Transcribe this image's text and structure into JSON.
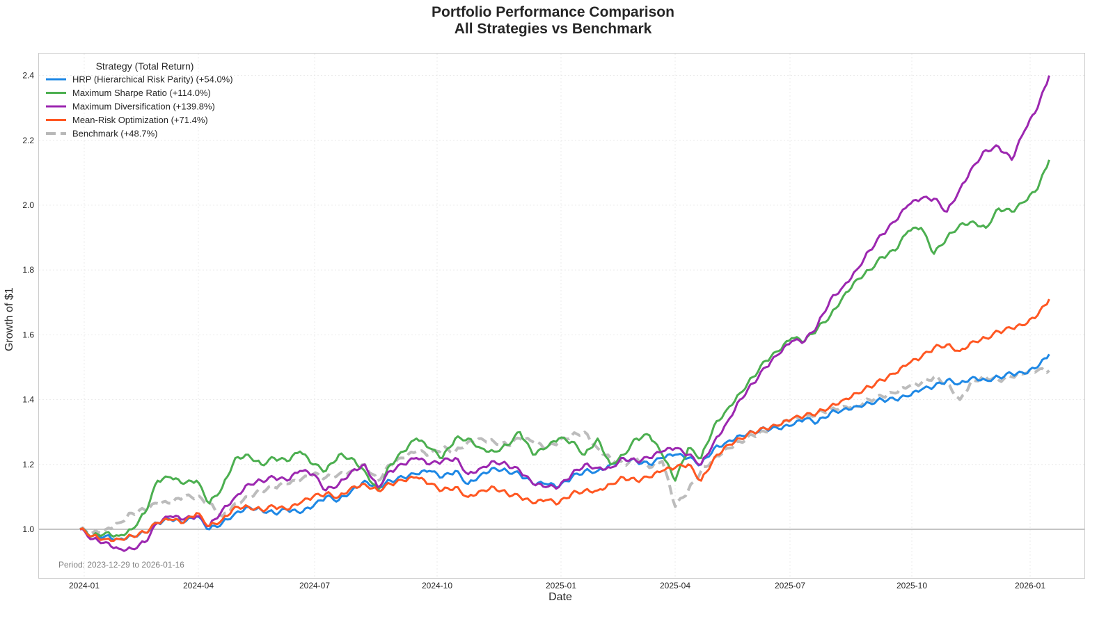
{
  "chart_data": {
    "type": "line",
    "title": "Portfolio Performance Comparison",
    "subtitle": "All Strategies vs Benchmark",
    "xlabel": "Date",
    "ylabel": "Growth of $1",
    "ylim": [
      0.85,
      2.47
    ],
    "xlim_dates": [
      "2023-12-17",
      "2026-02-28"
    ],
    "grid": true,
    "legend_position": "upper left",
    "legend_title": "Strategy (Total Return)",
    "yticks": [
      "1.0",
      "1.2",
      "1.4",
      "1.6",
      "1.8",
      "2.0",
      "2.2",
      "2.4"
    ],
    "xticks": [
      "2024-01",
      "2024-04",
      "2024-07",
      "2024-10",
      "2025-01",
      "2025-04",
      "2025-07",
      "2025-10",
      "2026-01"
    ],
    "reference_line": {
      "y": 1.0,
      "color": "#b0b0b0"
    },
    "annotation": "Period: 2023-12-29 to 2026-01-16",
    "x_unit": "days since 2023-12-29",
    "x": [
      0,
      10,
      20,
      30,
      40,
      50,
      60,
      70,
      80,
      90,
      100,
      110,
      120,
      130,
      140,
      150,
      160,
      170,
      180,
      190,
      200,
      210,
      220,
      230,
      240,
      250,
      260,
      270,
      280,
      290,
      300,
      310,
      320,
      330,
      340,
      350,
      360,
      370,
      380,
      390,
      400,
      410,
      420,
      430,
      440,
      450,
      460,
      470,
      480,
      490,
      500,
      510,
      520,
      530,
      540,
      550,
      560,
      570,
      580,
      590,
      600,
      610,
      620,
      630,
      640,
      650,
      660,
      670,
      680,
      690,
      700,
      710,
      720,
      730,
      740,
      749
    ],
    "series": [
      {
        "name": "HRP (Hierarchical Risk Parity) (+54.0%)",
        "color": "#1E88E5",
        "dashed": false,
        "total_return": "+54.0%",
        "values": [
          1.0,
          0.98,
          0.98,
          0.97,
          0.98,
          0.99,
          1.02,
          1.03,
          1.02,
          1.04,
          1.0,
          1.02,
          1.05,
          1.07,
          1.06,
          1.05,
          1.06,
          1.05,
          1.07,
          1.1,
          1.09,
          1.12,
          1.15,
          1.13,
          1.15,
          1.16,
          1.17,
          1.18,
          1.16,
          1.18,
          1.14,
          1.17,
          1.19,
          1.18,
          1.17,
          1.14,
          1.14,
          1.13,
          1.16,
          1.18,
          1.18,
          1.2,
          1.22,
          1.21,
          1.2,
          1.22,
          1.23,
          1.22,
          1.2,
          1.25,
          1.27,
          1.29,
          1.3,
          1.31,
          1.31,
          1.32,
          1.34,
          1.33,
          1.36,
          1.37,
          1.38,
          1.39,
          1.4,
          1.4,
          1.41,
          1.43,
          1.44,
          1.46,
          1.45,
          1.47,
          1.46,
          1.47,
          1.48,
          1.48,
          1.5,
          1.54
        ]
      },
      {
        "name": "Maximum Sharpe Ratio (+114.0%)",
        "color": "#4CAF50",
        "dashed": false,
        "total_return": "+114.0%",
        "values": [
          1.0,
          0.98,
          0.99,
          0.98,
          1.0,
          1.05,
          1.15,
          1.16,
          1.14,
          1.15,
          1.08,
          1.13,
          1.22,
          1.23,
          1.2,
          1.22,
          1.21,
          1.24,
          1.2,
          1.18,
          1.23,
          1.22,
          1.18,
          1.12,
          1.2,
          1.24,
          1.28,
          1.25,
          1.22,
          1.28,
          1.28,
          1.25,
          1.24,
          1.26,
          1.3,
          1.23,
          1.25,
          1.28,
          1.27,
          1.23,
          1.28,
          1.2,
          1.23,
          1.28,
          1.29,
          1.23,
          1.15,
          1.25,
          1.22,
          1.32,
          1.37,
          1.42,
          1.47,
          1.52,
          1.55,
          1.59,
          1.58,
          1.62,
          1.66,
          1.72,
          1.77,
          1.8,
          1.84,
          1.86,
          1.92,
          1.93,
          1.85,
          1.9,
          1.94,
          1.95,
          1.93,
          1.99,
          1.98,
          2.01,
          2.05,
          2.14
        ]
      },
      {
        "name": "Maximum Diversification (+139.8%)",
        "color": "#9C27B0",
        "dashed": false,
        "total_return": "+139.8%",
        "values": [
          1.0,
          0.97,
          0.96,
          0.94,
          0.94,
          0.96,
          1.02,
          1.04,
          1.03,
          1.04,
          1.01,
          1.06,
          1.1,
          1.14,
          1.15,
          1.16,
          1.15,
          1.18,
          1.17,
          1.12,
          1.14,
          1.18,
          1.2,
          1.13,
          1.18,
          1.2,
          1.22,
          1.2,
          1.21,
          1.22,
          1.17,
          1.19,
          1.21,
          1.2,
          1.18,
          1.14,
          1.13,
          1.13,
          1.17,
          1.2,
          1.19,
          1.19,
          1.22,
          1.21,
          1.22,
          1.24,
          1.25,
          1.23,
          1.2,
          1.27,
          1.33,
          1.4,
          1.45,
          1.5,
          1.54,
          1.58,
          1.58,
          1.63,
          1.71,
          1.75,
          1.8,
          1.86,
          1.91,
          1.95,
          2.0,
          2.02,
          2.02,
          1.98,
          2.05,
          2.12,
          2.17,
          2.18,
          2.14,
          2.23,
          2.3,
          2.4
        ]
      },
      {
        "name": "Mean-Risk Optimization (+71.4%)",
        "color": "#FF5722",
        "dashed": false,
        "total_return": "+71.4%",
        "values": [
          1.0,
          0.98,
          0.97,
          0.97,
          0.98,
          0.99,
          1.02,
          1.03,
          1.02,
          1.05,
          1.01,
          1.03,
          1.07,
          1.07,
          1.06,
          1.07,
          1.06,
          1.08,
          1.1,
          1.11,
          1.1,
          1.13,
          1.14,
          1.12,
          1.14,
          1.15,
          1.16,
          1.14,
          1.12,
          1.13,
          1.1,
          1.12,
          1.13,
          1.11,
          1.1,
          1.08,
          1.09,
          1.08,
          1.11,
          1.12,
          1.12,
          1.14,
          1.16,
          1.15,
          1.16,
          1.18,
          1.19,
          1.2,
          1.15,
          1.22,
          1.26,
          1.28,
          1.3,
          1.31,
          1.32,
          1.34,
          1.35,
          1.36,
          1.38,
          1.4,
          1.42,
          1.44,
          1.46,
          1.48,
          1.51,
          1.53,
          1.56,
          1.57,
          1.55,
          1.58,
          1.59,
          1.61,
          1.62,
          1.63,
          1.66,
          1.71
        ]
      },
      {
        "name": "Benchmark (+48.7%)",
        "color": "#B8B8B8",
        "dashed": true,
        "total_return": "+48.7%",
        "values": [
          1.0,
          0.99,
          1.0,
          1.02,
          1.05,
          1.06,
          1.08,
          1.08,
          1.1,
          1.1,
          1.08,
          1.04,
          1.08,
          1.1,
          1.12,
          1.13,
          1.14,
          1.15,
          1.17,
          1.16,
          1.17,
          1.18,
          1.2,
          1.15,
          1.2,
          1.22,
          1.24,
          1.23,
          1.25,
          1.24,
          1.27,
          1.28,
          1.27,
          1.26,
          1.28,
          1.27,
          1.25,
          1.27,
          1.29,
          1.3,
          1.25,
          1.22,
          1.2,
          1.22,
          1.19,
          1.21,
          1.07,
          1.12,
          1.18,
          1.22,
          1.25,
          1.27,
          1.29,
          1.3,
          1.32,
          1.34,
          1.34,
          1.36,
          1.37,
          1.38,
          1.38,
          1.4,
          1.41,
          1.42,
          1.44,
          1.45,
          1.47,
          1.45,
          1.4,
          1.46,
          1.47,
          1.46,
          1.47,
          1.48,
          1.49,
          1.49
        ]
      }
    ]
  },
  "figure": {
    "title_line1": "Portfolio Performance Comparison",
    "title_line2": "All Strategies vs Benchmark",
    "xlabel": "Date",
    "ylabel": "Growth of $1",
    "period_note": "Period: 2023-12-29 to 2026-01-16",
    "legend_title": "Strategy (Total Return)",
    "legend": [
      {
        "label": "HRP (Hierarchical Risk Parity) (+54.0%)",
        "color": "#1E88E5",
        "dashed": false
      },
      {
        "label": "Maximum Sharpe Ratio (+114.0%)",
        "color": "#4CAF50",
        "dashed": false
      },
      {
        "label": "Maximum Diversification (+139.8%)",
        "color": "#9C27B0",
        "dashed": false
      },
      {
        "label": "Mean-Risk Optimization (+71.4%)",
        "color": "#FF5722",
        "dashed": false
      },
      {
        "label": "Benchmark (+48.7%)",
        "color": "#B8B8B8",
        "dashed": true
      }
    ]
  }
}
